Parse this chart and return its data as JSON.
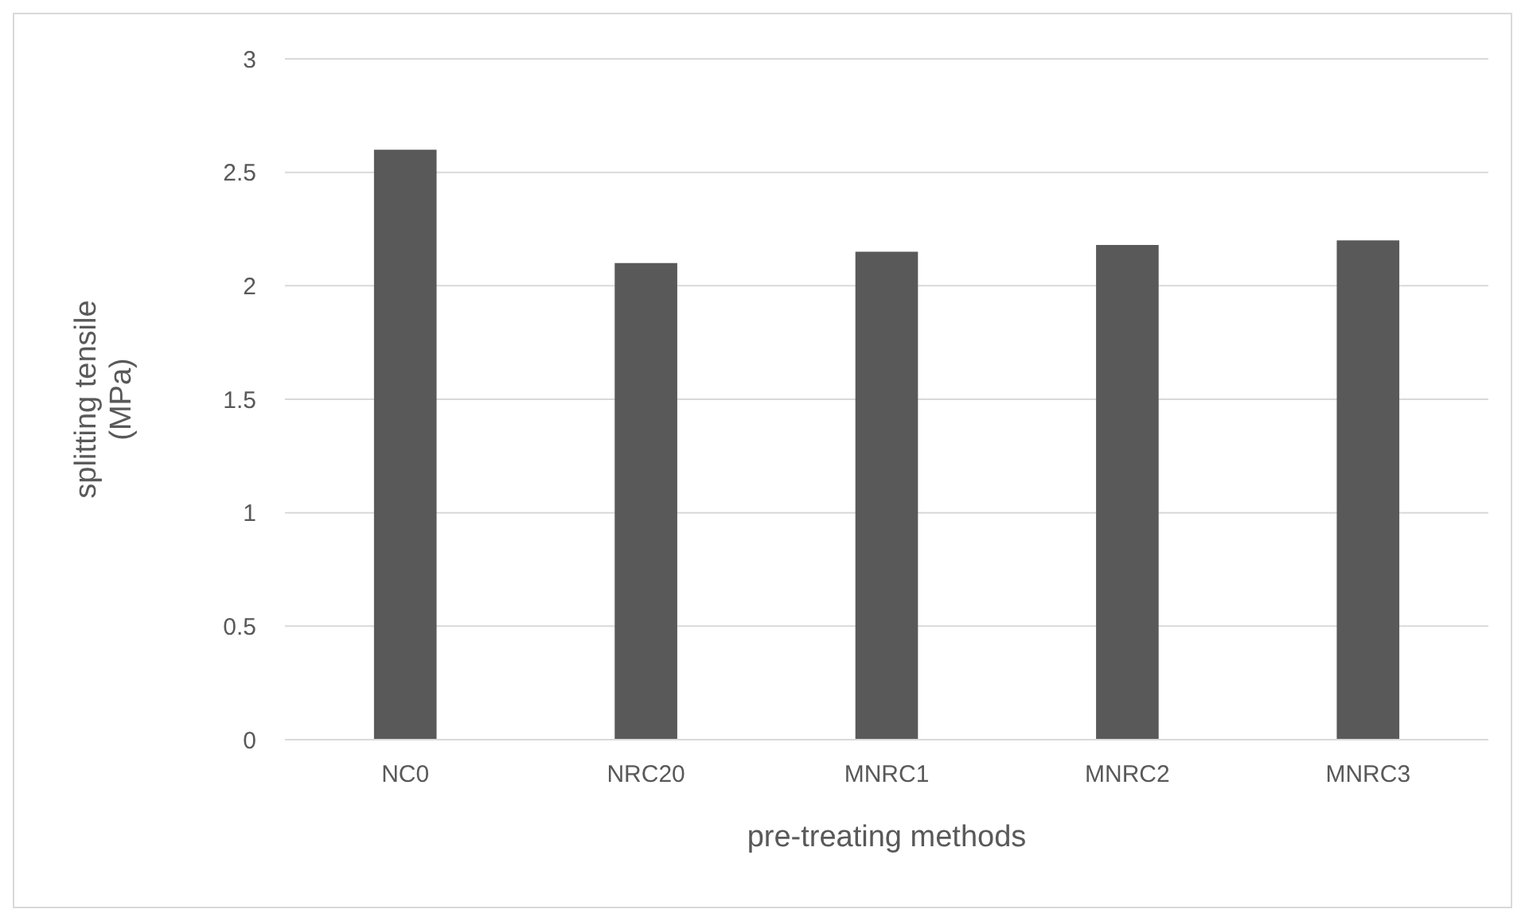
{
  "chart_data": {
    "type": "bar",
    "xlabel": "pre-treating methods",
    "ylabel": "splitting tensile (MPa)",
    "categories": [
      "NC0",
      "NRC20",
      "MNRC1",
      "MNRC2",
      "MNRC3"
    ],
    "series": [
      {
        "color": "#595959",
        "values": [
          2.6,
          2.1,
          2.15,
          2.18,
          2.2
        ]
      }
    ],
    "ylim": [
      0,
      3
    ],
    "yticks": [
      0,
      0.5,
      1,
      1.5,
      2,
      2.5,
      3
    ],
    "grid": "y",
    "legend": false
  }
}
